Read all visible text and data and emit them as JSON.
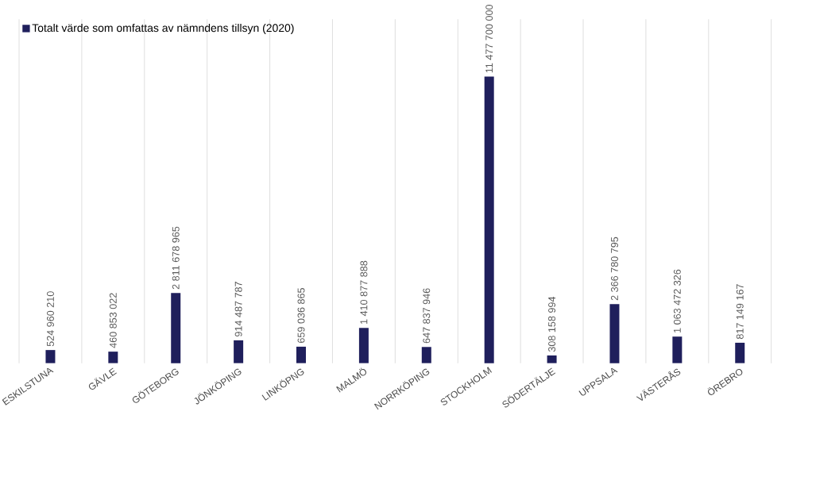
{
  "chart_data": {
    "type": "bar",
    "categories": [
      "ESKILSTUNA",
      "GÄVLE",
      "GÖTEBORG",
      "JÖNKÖPING",
      "LINKÖPNG",
      "MALMÖ",
      "NORRKÖPING",
      "STOCKHOLM",
      "SÖDERTÄLJE",
      "UPPSALA",
      "VÄSTERÅS",
      "ÖREBRO"
    ],
    "series": [
      {
        "name": "Totalt värde som omfattas av nämndens tillsyn (2020)",
        "color": "#1f1f5c",
        "values": [
          524960210,
          460853022,
          2811678965,
          914487787,
          659036865,
          1410877888,
          647837946,
          11477700000,
          308158994,
          2366780795,
          1063472326,
          817149167
        ],
        "value_labels": [
          "524 960 210",
          "460 853 022",
          "2 811 678 965",
          "914 487 787",
          "659 036 865",
          "1 410 877 888",
          "647 837 946",
          "11 477 700 000",
          "308 158 994",
          "2 366 780 795",
          "1 063 472 326",
          "817 149 167"
        ]
      }
    ],
    "grid": "x",
    "legend": "top left"
  }
}
